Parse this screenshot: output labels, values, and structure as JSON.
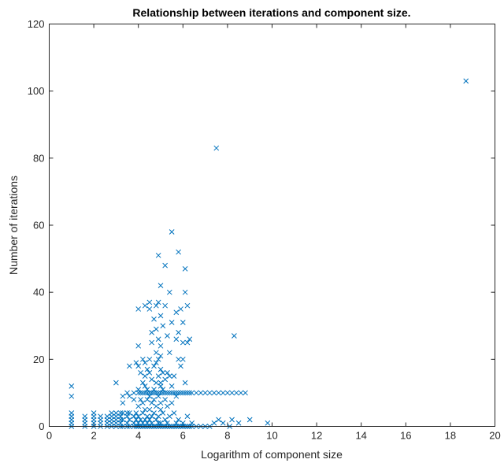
{
  "chart_data": {
    "type": "scatter",
    "title": "Relationship between iterations and component size.",
    "xlabel": "Logarithm of component size",
    "ylabel": "Number of iterations",
    "xlim": [
      0,
      20
    ],
    "ylim": [
      0,
      120
    ],
    "xticks": [
      "0",
      "2",
      "4",
      "6",
      "8",
      "10",
      "12",
      "14",
      "16",
      "18",
      "20"
    ],
    "yticks": [
      "0",
      "20",
      "40",
      "60",
      "80",
      "100",
      "120"
    ],
    "grid": false,
    "legend": "none",
    "marker": "x",
    "color": "#0072BD",
    "series": [
      {
        "points": [
          [
            1.0,
            12
          ],
          [
            1.0,
            9
          ],
          [
            1.0,
            4
          ],
          [
            1.0,
            3
          ],
          [
            1.0,
            2
          ],
          [
            1.0,
            1
          ],
          [
            1.0,
            0
          ],
          [
            1.6,
            3
          ],
          [
            1.6,
            2
          ],
          [
            1.6,
            1
          ],
          [
            1.6,
            0
          ],
          [
            2.0,
            4
          ],
          [
            2.0,
            3
          ],
          [
            2.0,
            2
          ],
          [
            2.0,
            1
          ],
          [
            2.0,
            0
          ],
          [
            2.3,
            3
          ],
          [
            2.3,
            2
          ],
          [
            2.3,
            1
          ],
          [
            2.3,
            0
          ],
          [
            2.6,
            3
          ],
          [
            2.6,
            2
          ],
          [
            2.6,
            1
          ],
          [
            2.6,
            0
          ],
          [
            2.8,
            4
          ],
          [
            2.8,
            3
          ],
          [
            2.8,
            2
          ],
          [
            2.8,
            1
          ],
          [
            2.8,
            0
          ],
          [
            3.0,
            13
          ],
          [
            3.0,
            4
          ],
          [
            3.0,
            3
          ],
          [
            3.0,
            2
          ],
          [
            3.0,
            1
          ],
          [
            3.0,
            0
          ],
          [
            3.2,
            4
          ],
          [
            3.2,
            3
          ],
          [
            3.2,
            2
          ],
          [
            3.2,
            1
          ],
          [
            3.2,
            0
          ],
          [
            3.3,
            9
          ],
          [
            3.3,
            7
          ],
          [
            3.3,
            4
          ],
          [
            3.3,
            2
          ],
          [
            3.3,
            0
          ],
          [
            3.5,
            10
          ],
          [
            3.5,
            4
          ],
          [
            3.5,
            3
          ],
          [
            3.5,
            1
          ],
          [
            3.5,
            0
          ],
          [
            3.6,
            18
          ],
          [
            3.6,
            9
          ],
          [
            3.6,
            4
          ],
          [
            3.6,
            2
          ],
          [
            3.6,
            0
          ],
          [
            3.8,
            10
          ],
          [
            3.8,
            8
          ],
          [
            3.8,
            3
          ],
          [
            3.8,
            1
          ],
          [
            3.8,
            0
          ],
          [
            3.9,
            19
          ],
          [
            3.9,
            4
          ],
          [
            3.9,
            2
          ],
          [
            3.9,
            0
          ],
          [
            4.0,
            35
          ],
          [
            4.0,
            24
          ],
          [
            4.0,
            18
          ],
          [
            4.0,
            11
          ],
          [
            4.0,
            10
          ],
          [
            4.0,
            6
          ],
          [
            4.0,
            3
          ],
          [
            4.0,
            1
          ],
          [
            4.0,
            0
          ],
          [
            4.1,
            16
          ],
          [
            4.1,
            10
          ],
          [
            4.1,
            8
          ],
          [
            4.1,
            2
          ],
          [
            4.1,
            0
          ],
          [
            4.2,
            20
          ],
          [
            4.2,
            13
          ],
          [
            4.2,
            10
          ],
          [
            4.2,
            7
          ],
          [
            4.2,
            4
          ],
          [
            4.2,
            1
          ],
          [
            4.2,
            0
          ],
          [
            4.3,
            36
          ],
          [
            4.3,
            19
          ],
          [
            4.3,
            15
          ],
          [
            4.3,
            12
          ],
          [
            4.3,
            10
          ],
          [
            4.3,
            5
          ],
          [
            4.3,
            2
          ],
          [
            4.3,
            0
          ],
          [
            4.4,
            17
          ],
          [
            4.4,
            11
          ],
          [
            4.4,
            10
          ],
          [
            4.4,
            8
          ],
          [
            4.4,
            3
          ],
          [
            4.4,
            1
          ],
          [
            4.4,
            0
          ],
          [
            4.5,
            37
          ],
          [
            4.5,
            35
          ],
          [
            4.5,
            20
          ],
          [
            4.5,
            16
          ],
          [
            4.5,
            10
          ],
          [
            4.5,
            9
          ],
          [
            4.5,
            5
          ],
          [
            4.5,
            2
          ],
          [
            4.5,
            0
          ],
          [
            4.6,
            28
          ],
          [
            4.6,
            25
          ],
          [
            4.6,
            14
          ],
          [
            4.6,
            10
          ],
          [
            4.6,
            7
          ],
          [
            4.6,
            3
          ],
          [
            4.6,
            1
          ],
          [
            4.6,
            0
          ],
          [
            4.7,
            32
          ],
          [
            4.7,
            18
          ],
          [
            4.7,
            11
          ],
          [
            4.7,
            10
          ],
          [
            4.7,
            8
          ],
          [
            4.7,
            4
          ],
          [
            4.7,
            0
          ],
          [
            4.8,
            36
          ],
          [
            4.8,
            29
          ],
          [
            4.8,
            22
          ],
          [
            4.8,
            19
          ],
          [
            4.8,
            13
          ],
          [
            4.8,
            10
          ],
          [
            4.8,
            6
          ],
          [
            4.8,
            2
          ],
          [
            4.8,
            0
          ],
          [
            4.9,
            51
          ],
          [
            4.9,
            37
          ],
          [
            4.9,
            26
          ],
          [
            4.9,
            20
          ],
          [
            4.9,
            15
          ],
          [
            4.9,
            10
          ],
          [
            4.9,
            9
          ],
          [
            4.9,
            3
          ],
          [
            4.9,
            1
          ],
          [
            4.9,
            0
          ],
          [
            5.0,
            42
          ],
          [
            5.0,
            33
          ],
          [
            5.0,
            24
          ],
          [
            5.0,
            21
          ],
          [
            5.0,
            17
          ],
          [
            5.0,
            13
          ],
          [
            5.0,
            12
          ],
          [
            5.0,
            10
          ],
          [
            5.0,
            7
          ],
          [
            5.0,
            5
          ],
          [
            5.0,
            1
          ],
          [
            5.0,
            0
          ],
          [
            5.1,
            30
          ],
          [
            5.1,
            16
          ],
          [
            5.1,
            11
          ],
          [
            5.1,
            10
          ],
          [
            5.1,
            4
          ],
          [
            5.1,
            0
          ],
          [
            5.2,
            48
          ],
          [
            5.2,
            36
          ],
          [
            5.2,
            14
          ],
          [
            5.2,
            10
          ],
          [
            5.2,
            8
          ],
          [
            5.2,
            2
          ],
          [
            5.2,
            0
          ],
          [
            5.3,
            27
          ],
          [
            5.3,
            16
          ],
          [
            5.3,
            10
          ],
          [
            5.3,
            6
          ],
          [
            5.3,
            1
          ],
          [
            5.3,
            0
          ],
          [
            5.4,
            40
          ],
          [
            5.4,
            22
          ],
          [
            5.4,
            15
          ],
          [
            5.4,
            10
          ],
          [
            5.4,
            3
          ],
          [
            5.4,
            0
          ],
          [
            5.5,
            58
          ],
          [
            5.5,
            31
          ],
          [
            5.5,
            12
          ],
          [
            5.5,
            10
          ],
          [
            5.5,
            7
          ],
          [
            5.5,
            0
          ],
          [
            5.6,
            15
          ],
          [
            5.6,
            10
          ],
          [
            5.6,
            4
          ],
          [
            5.6,
            0
          ],
          [
            5.7,
            34
          ],
          [
            5.7,
            26
          ],
          [
            5.7,
            10
          ],
          [
            5.7,
            9
          ],
          [
            5.7,
            1
          ],
          [
            5.7,
            0
          ],
          [
            5.8,
            52
          ],
          [
            5.8,
            28
          ],
          [
            5.8,
            20
          ],
          [
            5.8,
            10
          ],
          [
            5.8,
            2
          ],
          [
            5.8,
            0
          ],
          [
            5.9,
            35
          ],
          [
            5.9,
            18
          ],
          [
            5.9,
            10
          ],
          [
            5.9,
            0
          ],
          [
            6.0,
            31
          ],
          [
            6.0,
            25
          ],
          [
            6.0,
            20
          ],
          [
            6.0,
            10
          ],
          [
            6.0,
            1
          ],
          [
            6.0,
            0
          ],
          [
            6.1,
            47
          ],
          [
            6.1,
            40
          ],
          [
            6.1,
            13
          ],
          [
            6.1,
            10
          ],
          [
            6.1,
            0
          ],
          [
            6.2,
            36
          ],
          [
            6.2,
            25
          ],
          [
            6.2,
            10
          ],
          [
            6.2,
            3
          ],
          [
            6.2,
            0
          ],
          [
            6.3,
            26
          ],
          [
            6.3,
            10
          ],
          [
            6.3,
            0
          ],
          [
            6.4,
            10
          ],
          [
            6.4,
            1
          ],
          [
            6.4,
            0
          ],
          [
            6.6,
            10
          ],
          [
            6.6,
            0
          ],
          [
            6.8,
            10
          ],
          [
            6.8,
            0
          ],
          [
            7.0,
            10
          ],
          [
            7.0,
            0
          ],
          [
            7.2,
            10
          ],
          [
            7.2,
            0
          ],
          [
            7.4,
            10
          ],
          [
            7.4,
            1
          ],
          [
            7.5,
            83
          ],
          [
            7.6,
            10
          ],
          [
            7.6,
            2
          ],
          [
            7.8,
            10
          ],
          [
            7.8,
            1
          ],
          [
            8.0,
            10
          ],
          [
            8.1,
            0
          ],
          [
            8.2,
            10
          ],
          [
            8.2,
            2
          ],
          [
            8.3,
            27
          ],
          [
            8.4,
            10
          ],
          [
            8.5,
            1
          ],
          [
            8.6,
            10
          ],
          [
            8.8,
            10
          ],
          [
            9.0,
            2
          ],
          [
            9.8,
            1
          ],
          [
            18.7,
            103
          ]
        ]
      }
    ]
  }
}
